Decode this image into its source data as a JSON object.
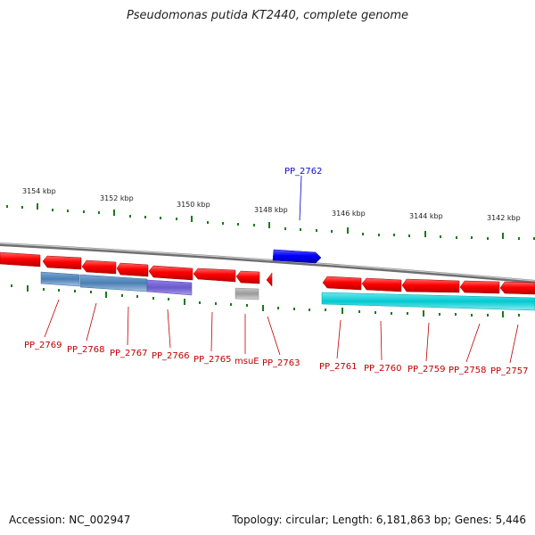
{
  "title": "Pseudomonas putida KT2440, complete genome",
  "footer": {
    "accession": "Accession: NC_002947",
    "summary": "Topology: circular; Length: 6,181,863 bp; Genes: 5,446"
  },
  "kbp_labels": [
    "3154 kbp",
    "3152 kbp",
    "3150 kbp",
    "3148 kbp",
    "3146 kbp",
    "3144 kbp",
    "3142 kbp"
  ],
  "genes_top": [
    {
      "label": "PP_2762",
      "color": "#0000ff",
      "strand": "forward"
    }
  ],
  "genes_bottom": [
    {
      "label": "PP_2769",
      "color": "#ff0000"
    },
    {
      "label": "PP_2768",
      "color": "#ff0000"
    },
    {
      "label": "PP_2767",
      "color": "#ff0000"
    },
    {
      "label": "PP_2766",
      "color": "#ff0000"
    },
    {
      "label": "PP_2765",
      "color": "#ff0000"
    },
    {
      "label": "msuE",
      "color": "#ff0000"
    },
    {
      "label": "PP_2763",
      "color": "#ff0000"
    },
    {
      "label": "PP_2761",
      "color": "#ff0000"
    },
    {
      "label": "PP_2760",
      "color": "#ff0000"
    },
    {
      "label": "PP_2759",
      "color": "#ff0000"
    },
    {
      "label": "PP_2758",
      "color": "#ff0000"
    },
    {
      "label": "PP_2757",
      "color": "#ff0000"
    }
  ],
  "colors": {
    "backbone": "#8a8a8a",
    "forward_gene": "#0000ff",
    "reverse_gene": "#ff0000",
    "steelblue_feature": "#4a7fb5",
    "purple_feature": "#6a5acd",
    "gray_feature": "#aaaaaa",
    "cyan_feature": "#00c8d0",
    "tick": "#1a7a1a"
  }
}
